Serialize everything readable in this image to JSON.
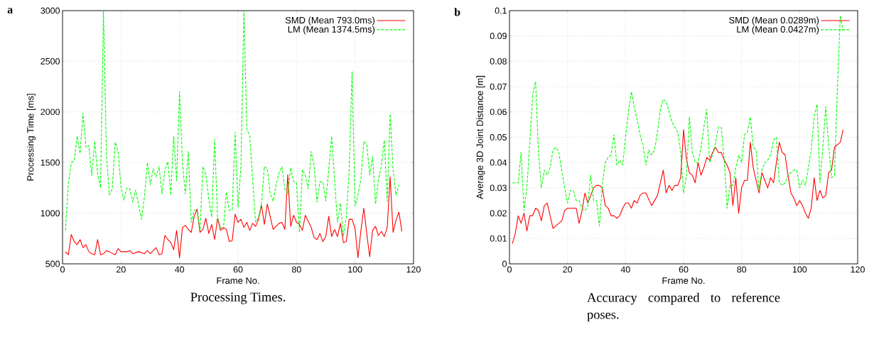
{
  "chart_data": [
    {
      "type": "line",
      "title": "Processing Times.",
      "xlabel": "Frame No.",
      "ylabel": "Processing Time [ms]",
      "annotations": [
        "a"
      ],
      "xlim": [
        0,
        120
      ],
      "ylim": [
        500,
        3000
      ],
      "xticks": [
        0,
        20,
        40,
        60,
        80,
        100,
        120
      ],
      "yticks": [
        500,
        1000,
        1500,
        2000,
        2500,
        3000
      ],
      "grid": true,
      "legend": "top right",
      "series": [
        {
          "name": "SMD (Mean 793.0ms)",
          "color": "#ff0000",
          "line_style": "solid",
          "x": [
            1,
            2,
            3,
            4,
            5,
            6,
            7,
            8,
            9,
            10,
            11,
            12,
            13,
            14,
            15,
            16,
            18,
            19,
            20,
            22,
            23,
            24,
            26,
            28,
            29,
            30,
            32,
            33,
            34,
            35,
            36,
            37,
            38,
            39,
            40,
            41,
            42,
            43,
            44,
            45,
            46,
            47,
            48,
            49,
            50,
            51,
            52,
            53,
            54,
            55,
            56,
            57,
            58,
            59,
            60,
            61,
            62,
            63,
            64,
            65,
            66,
            67,
            68,
            69,
            70,
            72,
            73,
            74,
            75,
            76,
            77,
            78,
            79,
            80,
            81,
            82,
            83,
            85,
            86,
            87,
            88,
            89,
            90,
            91,
            92,
            93,
            94,
            95,
            96,
            97,
            98,
            99,
            100,
            101,
            102,
            103,
            104,
            105,
            106,
            107,
            108,
            109,
            110,
            111,
            112,
            113,
            114,
            115,
            116
          ],
          "values": [
            620,
            590,
            790,
            720,
            690,
            740,
            660,
            690,
            620,
            600,
            590,
            740,
            590,
            600,
            630,
            620,
            590,
            650,
            620,
            620,
            630,
            600,
            620,
            600,
            630,
            600,
            660,
            590,
            600,
            780,
            740,
            710,
            640,
            830,
            560,
            860,
            880,
            840,
            810,
            970,
            1040,
            810,
            840,
            950,
            800,
            890,
            740,
            950,
            830,
            860,
            840,
            720,
            730,
            990,
            910,
            940,
            860,
            910,
            830,
            900,
            870,
            940,
            1080,
            890,
            1090,
            840,
            870,
            900,
            910,
            840,
            1380,
            870,
            980,
            910,
            890,
            830,
            980,
            860,
            760,
            740,
            800,
            720,
            770,
            970,
            770,
            840,
            770,
            900,
            710,
            720,
            940,
            940,
            850,
            560,
            830,
            1050,
            800,
            570,
            830,
            870,
            780,
            820,
            770,
            860,
            1360,
            810,
            930,
            1010,
            820
          ]
        },
        {
          "name": "LM (Mean 1374.5ms)",
          "color": "#00ff00",
          "line_style": "dashed",
          "x": [
            1,
            2,
            3,
            4,
            5,
            6,
            7,
            8,
            9,
            10,
            11,
            12,
            13,
            14,
            15,
            16,
            17,
            18,
            19,
            20,
            21,
            22,
            23,
            24,
            25,
            26,
            27,
            28,
            29,
            30,
            31,
            32,
            33,
            34,
            35,
            36,
            37,
            38,
            39,
            40,
            41,
            42,
            43,
            44,
            45,
            46,
            47,
            48,
            49,
            50,
            51,
            52,
            53,
            54,
            55,
            56,
            57,
            58,
            59,
            60,
            61,
            62,
            63,
            64,
            65,
            66,
            67,
            68,
            69,
            70,
            71,
            72,
            73,
            74,
            75,
            76,
            77,
            78,
            79,
            80,
            81,
            82,
            83,
            84,
            85,
            86,
            87,
            88,
            89,
            90,
            91,
            92,
            93,
            94,
            95,
            96,
            97,
            98,
            99,
            100,
            101,
            102,
            103,
            104,
            105,
            106,
            107,
            108,
            109,
            110,
            111,
            112,
            113,
            114,
            115
          ],
          "values": [
            830,
            1290,
            1500,
            1520,
            1760,
            1590,
            1990,
            1650,
            1670,
            1370,
            1710,
            1390,
            1250,
            3000,
            1590,
            1180,
            1240,
            1700,
            1610,
            1250,
            1130,
            1250,
            1240,
            1110,
            1230,
            1080,
            940,
            1160,
            1500,
            1280,
            1440,
            1360,
            1460,
            1190,
            1430,
            1510,
            1180,
            1760,
            1320,
            2200,
            1500,
            1190,
            1610,
            910,
            1030,
            1030,
            830,
            1460,
            1380,
            1140,
            960,
            1730,
            960,
            860,
            840,
            1210,
            1030,
            1030,
            1800,
            1060,
            1470,
            3000,
            1830,
            1760,
            1330,
            910,
            960,
            1090,
            1460,
            1440,
            1190,
            1120,
            1280,
            1400,
            1460,
            1240,
            1190,
            1450,
            1310,
            1300,
            810,
            1430,
            1370,
            1240,
            1610,
            1470,
            1110,
            1310,
            1310,
            1120,
            1430,
            1760,
            1320,
            910,
            1100,
            770,
            960,
            1430,
            2400,
            1070,
            1180,
            1330,
            1710,
            1680,
            1380,
            1560,
            1090,
            1330,
            1470,
            1720,
            1120,
            1980,
            1430,
            1180,
            1280
          ]
        }
      ]
    },
    {
      "type": "line",
      "title": "Accuracy compared to reference poses.",
      "xlabel": "Frame No.",
      "ylabel": "Average 3D Joint Distance [m]",
      "annotations": [
        "b"
      ],
      "xlim": [
        0,
        120
      ],
      "ylim": [
        0,
        0.1
      ],
      "xticks": [
        0,
        20,
        40,
        60,
        80,
        100,
        120
      ],
      "yticks": [
        0,
        0.01,
        0.02,
        0.03,
        0.04,
        0.05,
        0.06,
        0.07,
        0.08,
        0.09,
        0.1
      ],
      "grid": true,
      "legend": "top right",
      "series": [
        {
          "name": "SMD (Mean 0.0289m)",
          "color": "#ff0000",
          "line_style": "solid",
          "x": [
            1,
            2,
            3,
            4,
            5,
            6,
            7,
            8,
            9,
            10,
            11,
            12,
            13,
            14,
            15,
            16,
            17,
            18,
            19,
            20,
            21,
            22,
            23,
            24,
            25,
            26,
            27,
            28,
            29,
            30,
            31,
            32,
            33,
            34,
            35,
            36,
            37,
            38,
            39,
            40,
            41,
            42,
            43,
            44,
            45,
            46,
            47,
            49,
            51,
            53,
            54,
            55,
            56,
            57,
            58,
            59,
            60,
            61,
            62,
            63,
            64,
            65,
            66,
            67,
            68,
            69,
            70,
            71,
            72,
            73,
            74,
            75,
            76,
            77,
            78,
            79,
            80,
            81,
            82,
            83,
            84,
            85,
            86,
            87,
            88,
            89,
            90,
            91,
            92,
            93,
            94,
            95,
            96,
            97,
            98,
            99,
            100,
            101,
            102,
            103,
            104,
            105,
            106,
            107,
            108,
            109,
            110,
            111,
            112,
            113,
            114,
            115
          ],
          "values": [
            0.008,
            0.012,
            0.019,
            0.016,
            0.02,
            0.013,
            0.019,
            0.019,
            0.022,
            0.021,
            0.017,
            0.023,
            0.024,
            0.019,
            0.014,
            0.015,
            0.016,
            0.017,
            0.021,
            0.022,
            0.022,
            0.022,
            0.022,
            0.016,
            0.021,
            0.028,
            0.024,
            0.027,
            0.03,
            0.031,
            0.031,
            0.03,
            0.023,
            0.022,
            0.019,
            0.019,
            0.018,
            0.019,
            0.022,
            0.024,
            0.024,
            0.022,
            0.025,
            0.024,
            0.027,
            0.028,
            0.028,
            0.023,
            0.027,
            0.037,
            0.028,
            0.031,
            0.029,
            0.031,
            0.031,
            0.034,
            0.053,
            0.041,
            0.036,
            0.035,
            0.032,
            0.04,
            0.035,
            0.038,
            0.042,
            0.041,
            0.044,
            0.046,
            0.044,
            0.044,
            0.041,
            0.039,
            0.036,
            0.023,
            0.034,
            0.02,
            0.03,
            0.033,
            0.033,
            0.048,
            0.038,
            0.033,
            0.028,
            0.036,
            0.033,
            0.03,
            0.034,
            0.032,
            0.04,
            0.048,
            0.044,
            0.043,
            0.035,
            0.028,
            0.026,
            0.023,
            0.025,
            0.023,
            0.02,
            0.018,
            0.022,
            0.034,
            0.025,
            0.029,
            0.026,
            0.027,
            0.036,
            0.037,
            0.046,
            0.047,
            0.048,
            0.053
          ]
        },
        {
          "name": "LM (Mean 0.0427m)",
          "color": "#00ff00",
          "line_style": "dashed",
          "x": [
            1,
            2,
            3,
            4,
            5,
            6,
            7,
            8,
            9,
            10,
            11,
            12,
            13,
            14,
            15,
            16,
            17,
            18,
            19,
            20,
            21,
            22,
            23,
            24,
            25,
            26,
            27,
            28,
            29,
            30,
            31,
            32,
            33,
            34,
            35,
            36,
            37,
            38,
            39,
            40,
            41,
            42,
            43,
            44,
            45,
            46,
            47,
            48,
            49,
            50,
            51,
            52,
            53,
            54,
            55,
            56,
            57,
            58,
            59,
            60,
            61,
            62,
            63,
            64,
            65,
            66,
            67,
            68,
            69,
            70,
            71,
            72,
            73,
            74,
            75,
            76,
            77,
            78,
            79,
            80,
            81,
            82,
            83,
            84,
            85,
            86,
            87,
            88,
            89,
            90,
            91,
            92,
            93,
            94,
            95,
            96,
            97,
            98,
            99,
            100,
            101,
            102,
            103,
            104,
            105,
            106,
            107,
            108,
            109,
            110,
            111,
            112,
            113,
            114,
            115
          ],
          "values": [
            0.032,
            0.032,
            0.032,
            0.044,
            0.021,
            0.03,
            0.048,
            0.067,
            0.072,
            0.044,
            0.03,
            0.037,
            0.035,
            0.038,
            0.045,
            0.046,
            0.044,
            0.037,
            0.03,
            0.024,
            0.029,
            0.029,
            0.025,
            0.025,
            0.022,
            0.021,
            0.023,
            0.035,
            0.025,
            0.025,
            0.015,
            0.031,
            0.04,
            0.042,
            0.043,
            0.051,
            0.039,
            0.041,
            0.039,
            0.05,
            0.06,
            0.068,
            0.062,
            0.057,
            0.051,
            0.047,
            0.039,
            0.045,
            0.043,
            0.045,
            0.052,
            0.061,
            0.065,
            0.064,
            0.06,
            0.056,
            0.054,
            0.052,
            0.044,
            0.028,
            0.035,
            0.058,
            0.044,
            0.04,
            0.04,
            0.046,
            0.054,
            0.061,
            0.04,
            0.043,
            0.048,
            0.054,
            0.054,
            0.041,
            0.022,
            0.031,
            0.031,
            0.038,
            0.043,
            0.04,
            0.051,
            0.052,
            0.058,
            0.046,
            0.045,
            0.029,
            0.037,
            0.04,
            0.041,
            0.043,
            0.049,
            0.05,
            0.032,
            0.031,
            0.032,
            0.035,
            0.036,
            0.037,
            0.037,
            0.03,
            0.033,
            0.031,
            0.038,
            0.045,
            0.058,
            0.063,
            0.032,
            0.046,
            0.062,
            0.047,
            0.034,
            0.035,
            0.069,
            0.098,
            0.092
          ]
        }
      ]
    }
  ]
}
